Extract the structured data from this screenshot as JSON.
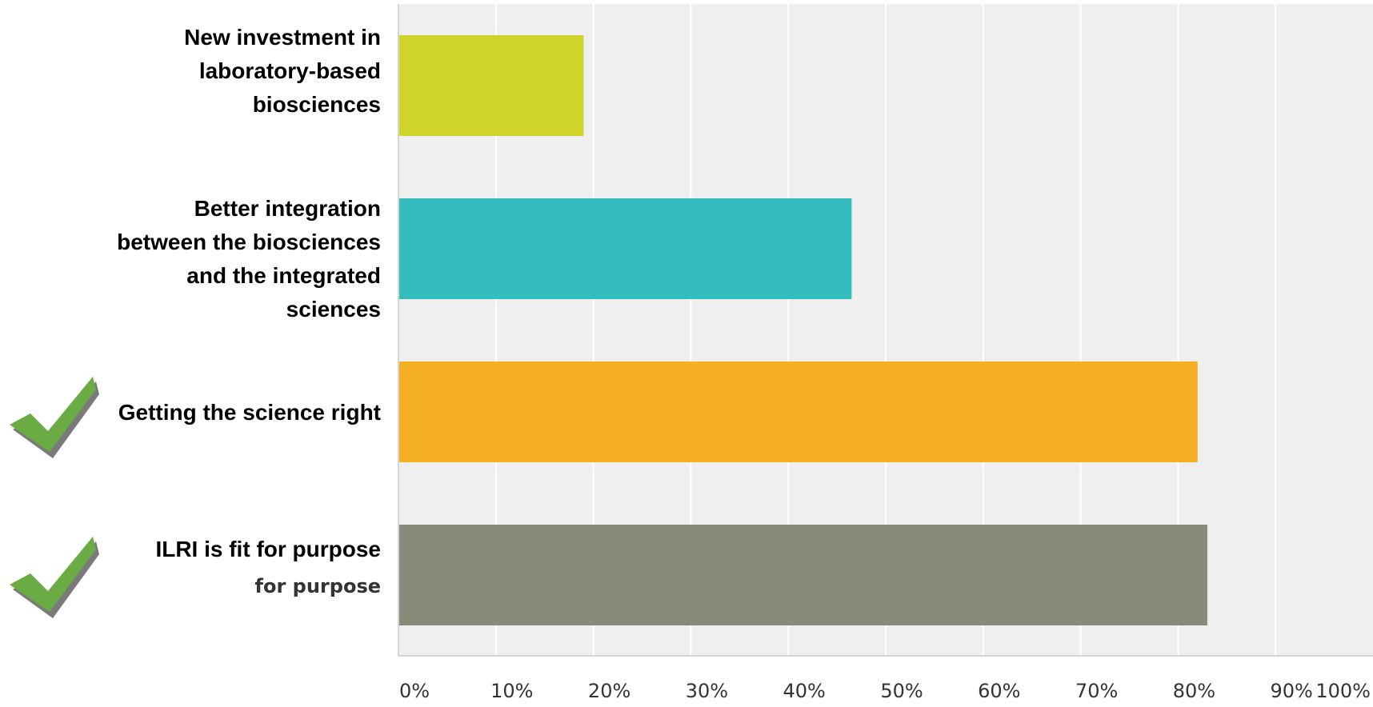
{
  "chart_data": {
    "type": "bar",
    "orientation": "horizontal",
    "categories": [
      "New investment in\nlaboratory-based\nbiosciences",
      "Better integration\nbetween the biosciences\nand the integrated\nsciences",
      "Getting the science right",
      "ILRI is fit for purpose"
    ],
    "values": [
      19,
      46.5,
      82,
      83
    ],
    "colors": [
      "#cfd42b",
      "#33bdbf",
      "#f5af22",
      "#898a7a"
    ],
    "sub_labels": [
      "",
      "",
      "",
      "for purpose"
    ],
    "checkmarks": [
      false,
      false,
      true,
      true
    ],
    "check_color": "#6aab44",
    "xlim": [
      0,
      100
    ],
    "xticks": [
      "0%",
      "10%",
      "20%",
      "30%",
      "40%",
      "50%",
      "60%",
      "70%",
      "80%",
      "90%",
      "100%"
    ],
    "grid": true,
    "plot_background": "#efefef",
    "grid_color": "#ffffff",
    "title": "",
    "xlabel": "",
    "ylabel": ""
  }
}
